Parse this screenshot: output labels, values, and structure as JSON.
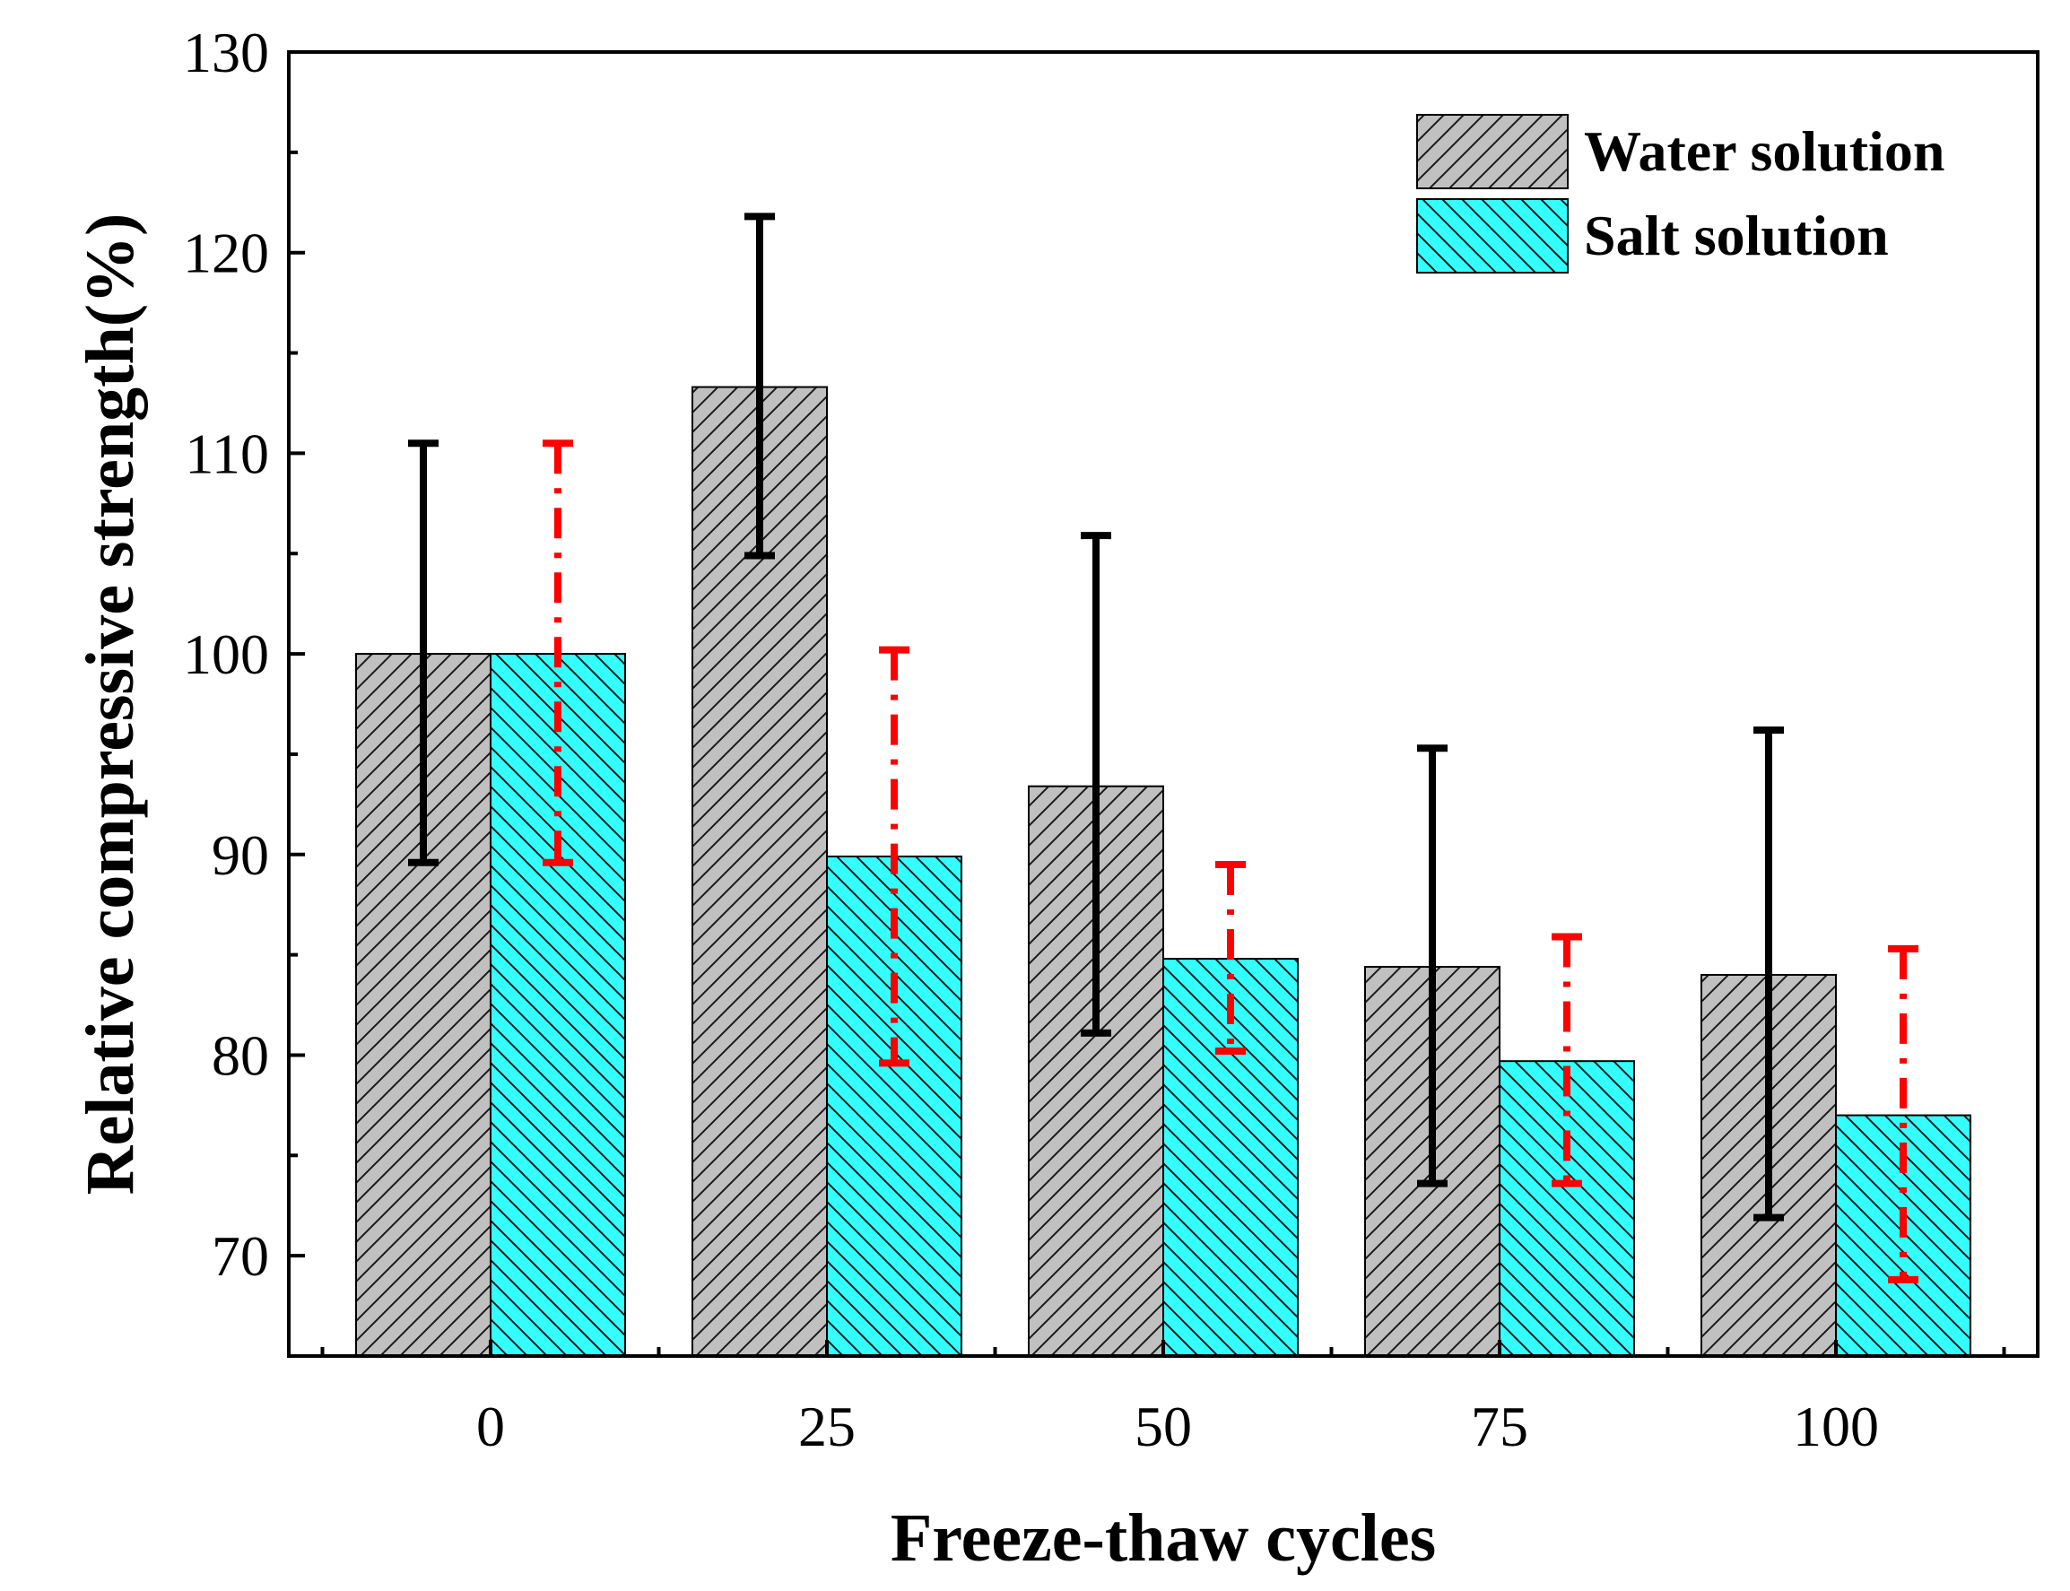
{
  "chart_data": {
    "type": "bar",
    "xlabel": "Freeze-thaw cycles",
    "ylabel": "Relative compressive strength(%)",
    "categories": [
      "0",
      "25",
      "50",
      "75",
      "100"
    ],
    "ylim": [
      65,
      130
    ],
    "yticks": [
      70,
      80,
      90,
      100,
      110,
      120,
      130
    ],
    "grid": false,
    "legend_position": "top-right",
    "series": [
      {
        "name": "Water solution",
        "values": [
          100,
          113.3,
          93.4,
          84.4,
          84.0
        ],
        "error_low": [
          89.6,
          104.9,
          81.1,
          73.6,
          71.9
        ],
        "error_high": [
          110.5,
          121.8,
          105.9,
          95.3,
          96.2
        ],
        "fill_color": "#c0c0c0",
        "hatch": "forward-diagonal",
        "error_color": "#000000",
        "error_style": "solid"
      },
      {
        "name": "Salt solution",
        "values": [
          100,
          89.9,
          84.8,
          79.7,
          77.0
        ],
        "error_low": [
          89.6,
          79.6,
          80.2,
          73.6,
          68.8
        ],
        "error_high": [
          110.5,
          100.2,
          89.5,
          85.9,
          85.3
        ],
        "fill_color": "#33ffff",
        "hatch": "back-diagonal",
        "error_color": "#ff0000",
        "error_style": "dash-dot"
      }
    ]
  }
}
